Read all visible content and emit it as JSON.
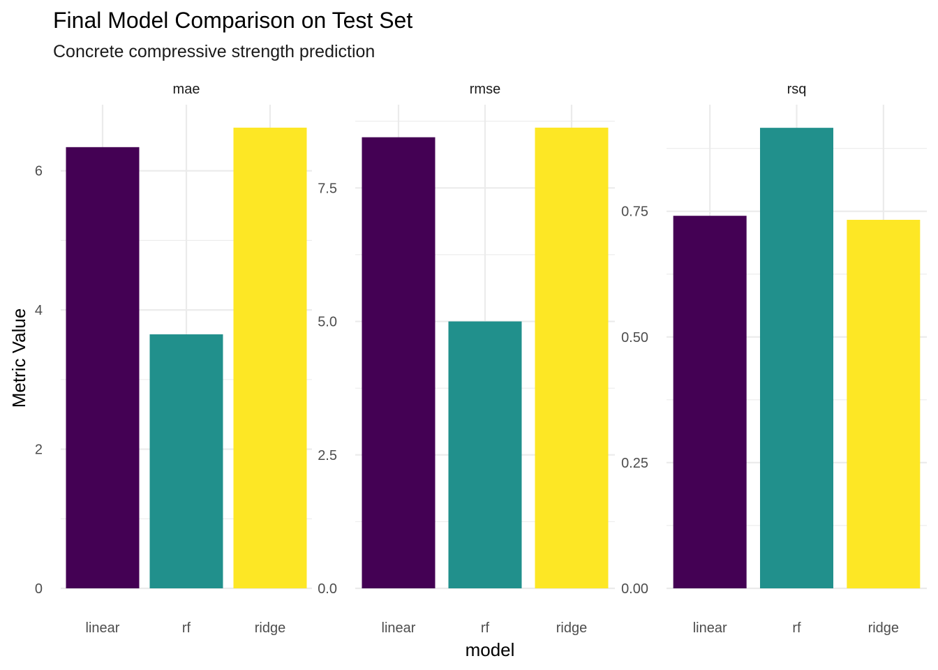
{
  "chart_data": {
    "type": "bar",
    "title": "Final Model Comparison on Test Set",
    "subtitle": "Concrete compressive strength prediction",
    "xlabel": "model",
    "ylabel": "Metric Value",
    "categories": [
      "linear",
      "rf",
      "ridge"
    ],
    "colors": {
      "linear": "#440154",
      "rf": "#21908C",
      "ridge": "#FDE725"
    },
    "panels": [
      {
        "name": "mae",
        "values": [
          6.34,
          3.65,
          6.62
        ],
        "ylim": [
          0,
          6.95
        ],
        "yticks": [
          0,
          2,
          4,
          6
        ],
        "ytick_labels": [
          "0",
          "2",
          "4",
          "6"
        ],
        "yminor": [
          1,
          3,
          5
        ]
      },
      {
        "name": "rmse",
        "values": [
          8.45,
          5.0,
          8.63
        ],
        "ylim": [
          0,
          9.06
        ],
        "yticks": [
          0,
          2.5,
          5,
          7.5
        ],
        "ytick_labels": [
          "0.0",
          "2.5",
          "5.0",
          "7.5"
        ],
        "yminor": [
          1.25,
          3.75,
          6.25,
          8.75
        ]
      },
      {
        "name": "rsq",
        "values": [
          0.741,
          0.916,
          0.733
        ],
        "ylim": [
          0,
          0.962
        ],
        "yticks": [
          0,
          0.25,
          0.5,
          0.75
        ],
        "ytick_labels": [
          "0.00",
          "0.25",
          "0.50",
          "0.75"
        ],
        "yminor": [
          0.125,
          0.375,
          0.625,
          0.875
        ]
      }
    ],
    "grid": true,
    "legend": "none"
  }
}
